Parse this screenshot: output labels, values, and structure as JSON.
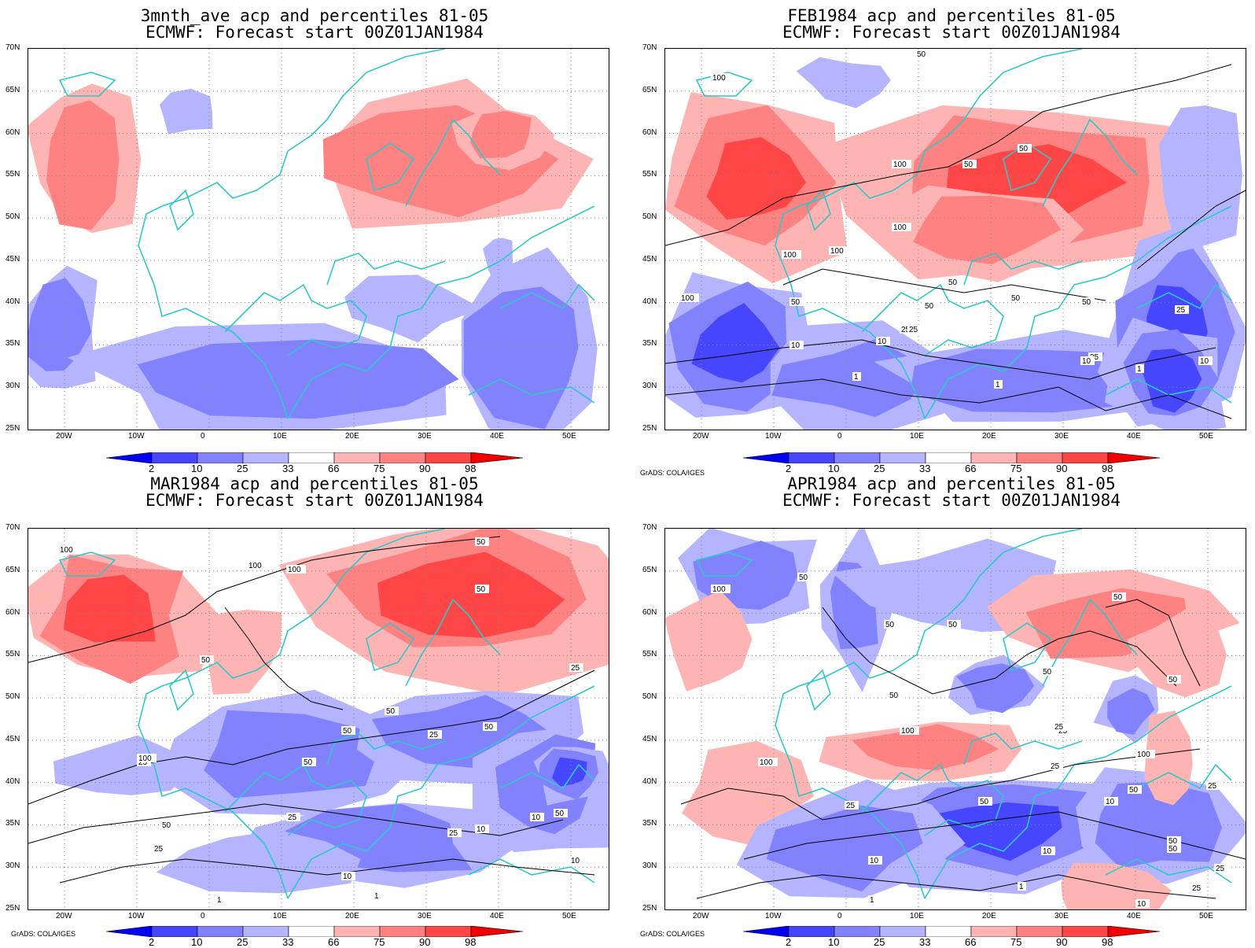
{
  "panels": [
    {
      "title_line1": "3mnth_ave acp and percentiles 81-05",
      "title_line2": "ECMWF: Forecast start 00Z01JAN1984",
      "credit": "",
      "contour_labels": []
    },
    {
      "title_line1": "FEB1984 acp and percentiles 81-05",
      "title_line2": "ECMWF: Forecast start 00Z01JAN1984",
      "credit": "GrADS: COLA/IGES",
      "contour_labels": [
        "100",
        "100",
        "50",
        "100",
        "50",
        "100",
        "100",
        "100",
        "50",
        "50",
        "50",
        "50",
        "25",
        "10",
        "50",
        "1",
        "50",
        "25",
        "10",
        "1",
        "25",
        "25",
        "10",
        "1",
        "1",
        "25",
        "10"
      ]
    },
    {
      "title_line1": "MAR1984 acp and percentiles 81-05",
      "title_line2": "ECMWF: Forecast start 00Z01JAN1984",
      "credit": "GrADS: COLA/IGES",
      "contour_labels": [
        "100",
        "100",
        "100",
        "50",
        "50",
        "50",
        "50",
        "50",
        "50",
        "25",
        "50",
        "25",
        "100",
        "50",
        "25",
        "10",
        "25",
        "1",
        "1",
        "10",
        "10",
        "50",
        "25",
        "10",
        "25"
      ]
    },
    {
      "title_line1": "APR1984 acp and percentiles 81-05",
      "title_line2": "ECMWF: Forecast start 00Z01JAN1984",
      "credit": "GrADS: COLA/IGES",
      "contour_labels": [
        "50",
        "100",
        "50",
        "50",
        "50",
        "50",
        "50",
        "100",
        "100",
        "25",
        "50",
        "25",
        "100",
        "25",
        "50",
        "50",
        "25",
        "10",
        "10",
        "1",
        "1",
        "25",
        "50",
        "10",
        "50",
        "25",
        "10",
        "25"
      ]
    }
  ],
  "axis": {
    "y_labels": [
      "70N",
      "65N",
      "60N",
      "55N",
      "50N",
      "45N",
      "40N",
      "35N",
      "30N",
      "25N"
    ],
    "x_labels": [
      "20W",
      "10W",
      "0",
      "10E",
      "20E",
      "30E",
      "40E",
      "50E"
    ]
  },
  "colorbar": {
    "ticks": [
      "2",
      "10",
      "25",
      "33",
      "66",
      "75",
      "90",
      "98"
    ],
    "colors": [
      "#0000f0",
      "#4646ff",
      "#8282ff",
      "#b4b4ff",
      "#ffffff",
      "#ffb4b4",
      "#ff8282",
      "#ff4646",
      "#f00000"
    ]
  },
  "colors": {
    "coast": "#2fc8c8",
    "blue_light": "#b4b4ff",
    "blue_mid": "#8282ff",
    "blue_dark": "#4646ff",
    "blue_max": "#0000f0",
    "red_light": "#ffb4b4",
    "red_mid": "#ff8282",
    "red_dark": "#ff4646",
    "red_max": "#f00000"
  }
}
